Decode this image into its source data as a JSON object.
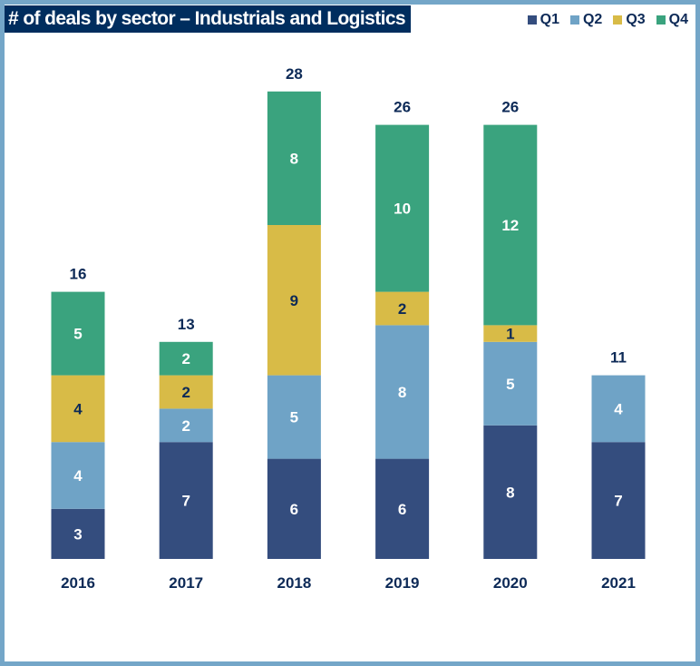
{
  "chart_data": {
    "type": "bar",
    "stacked": true,
    "title": "# of deals by sector – Industrials and Logistics",
    "categories": [
      "2016",
      "2017",
      "2018",
      "2019",
      "2020",
      "2021"
    ],
    "series": [
      {
        "name": "Q1",
        "color": "#344d7e",
        "values": [
          3,
          7,
          6,
          6,
          8,
          7
        ]
      },
      {
        "name": "Q2",
        "color": "#6fa3c6",
        "values": [
          4,
          2,
          5,
          8,
          5,
          4
        ]
      },
      {
        "name": "Q3",
        "color": "#d8bb47",
        "values": [
          4,
          2,
          9,
          2,
          1,
          0
        ]
      },
      {
        "name": "Q4",
        "color": "#3aa37e",
        "values": [
          5,
          2,
          8,
          10,
          12,
          0
        ]
      }
    ],
    "totals": [
      16,
      13,
      28,
      26,
      26,
      11
    ],
    "legend": "top-right",
    "grid": false,
    "yaxis_visible": false
  }
}
